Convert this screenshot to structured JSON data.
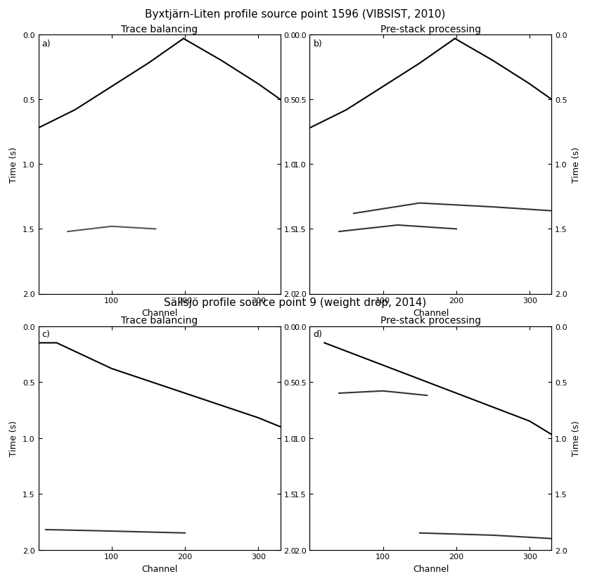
{
  "figure_titles": [
    "Byxtjärn-Liten profile source point 1596 (VIBSIST, 2010)",
    "Sällsjö profile source point 9 (weight drop, 2014)"
  ],
  "chart_data": [
    {
      "type": "line",
      "title": "Trace balancing",
      "label": "a)",
      "xlabel": "Channel",
      "ylabel": "Time (s)",
      "xlim": [
        0,
        330
      ],
      "xticks": [
        100,
        200,
        300
      ],
      "ylim": [
        2.0,
        0.0
      ],
      "yticks": [
        {
          "value": 0.0,
          "label": "0.0"
        },
        {
          "value": 0.5,
          "label": "0.5"
        },
        {
          "value": 1.0,
          "label": "1.0"
        },
        {
          "value": 1.5,
          "label": "1.5"
        },
        {
          "value": 2.0,
          "label": "2.0"
        }
      ],
      "series": [
        {
          "color": "#000000",
          "x": [
            0,
            50,
            100,
            150,
            198
          ],
          "values": [
            0.72,
            0.58,
            0.4,
            0.22,
            0.03
          ]
        },
        {
          "color": "#000000",
          "x": [
            198,
            250,
            300,
            330
          ],
          "values": [
            0.03,
            0.2,
            0.38,
            0.5
          ]
        },
        {
          "color": "#555555",
          "x": [
            40,
            100,
            160
          ],
          "values": [
            1.52,
            1.48,
            1.5
          ]
        }
      ]
    },
    {
      "type": "line",
      "title": "Pre-stack processing",
      "label": "b)",
      "xlabel": "Channel",
      "ylabel": "Time (s)",
      "xlim": [
        0,
        330
      ],
      "xticks": [
        100,
        200,
        300
      ],
      "ylim": [
        2.0,
        0.0
      ],
      "yticks": [
        {
          "value": 0.0,
          "label": "0.0"
        },
        {
          "value": 0.5,
          "label": "0.5"
        },
        {
          "value": 1.0,
          "label": "1.0"
        },
        {
          "value": 1.5,
          "label": "1.5"
        },
        {
          "value": 2.0,
          "label": "2.0"
        }
      ],
      "series": [
        {
          "color": "#000000",
          "x": [
            0,
            50,
            100,
            150,
            198
          ],
          "values": [
            0.72,
            0.58,
            0.4,
            0.22,
            0.03
          ]
        },
        {
          "color": "#000000",
          "x": [
            198,
            250,
            300,
            330
          ],
          "values": [
            0.03,
            0.2,
            0.38,
            0.5
          ]
        },
        {
          "color": "#333333",
          "x": [
            60,
            150,
            250,
            330
          ],
          "values": [
            1.38,
            1.3,
            1.33,
            1.36
          ]
        },
        {
          "color": "#333333",
          "x": [
            40,
            120,
            200
          ],
          "values": [
            1.52,
            1.47,
            1.5
          ]
        }
      ]
    },
    {
      "type": "line",
      "title": "Trace balancing",
      "label": "c)",
      "xlabel": "Channel",
      "ylabel": "Time (s)",
      "xlim": [
        0,
        330
      ],
      "xticks": [
        100,
        200,
        300
      ],
      "ylim": [
        2.0,
        0.0
      ],
      "yticks": [
        {
          "value": 0.0,
          "label": "0.0"
        },
        {
          "value": 0.5,
          "label": "0.5"
        },
        {
          "value": 1.0,
          "label": "1.0"
        },
        {
          "value": 1.5,
          "label": "1.5"
        },
        {
          "value": 2.0,
          "label": "2.0"
        }
      ],
      "series": [
        {
          "color": "#000000",
          "x": [
            0,
            25,
            100,
            200,
            300,
            330
          ],
          "values": [
            0.15,
            0.15,
            0.38,
            0.6,
            0.82,
            0.9
          ]
        },
        {
          "color": "#333333",
          "x": [
            10,
            80,
            200
          ],
          "values": [
            1.82,
            1.83,
            1.85
          ]
        }
      ]
    },
    {
      "type": "line",
      "title": "Pre-stack processing",
      "label": "d)",
      "xlabel": "Channel",
      "ylabel": "Time (s)",
      "xlim": [
        0,
        330
      ],
      "xticks": [
        100,
        200,
        300
      ],
      "ylim": [
        2.0,
        0.0
      ],
      "yticks": [
        {
          "value": 0.0,
          "label": "0.0"
        },
        {
          "value": 0.5,
          "label": "0.5"
        },
        {
          "value": 1.0,
          "label": "1.0"
        },
        {
          "value": 1.5,
          "label": "1.5"
        },
        {
          "value": 2.0,
          "label": "2.0"
        }
      ],
      "series": [
        {
          "color": "#000000",
          "x": [
            20,
            100,
            200,
            300,
            330
          ],
          "values": [
            0.15,
            0.35,
            0.6,
            0.85,
            0.97
          ]
        },
        {
          "color": "#333333",
          "x": [
            40,
            100,
            160
          ],
          "values": [
            0.6,
            0.58,
            0.62
          ]
        },
        {
          "color": "#333333",
          "x": [
            150,
            250,
            330
          ],
          "values": [
            1.85,
            1.87,
            1.9
          ]
        }
      ]
    }
  ]
}
